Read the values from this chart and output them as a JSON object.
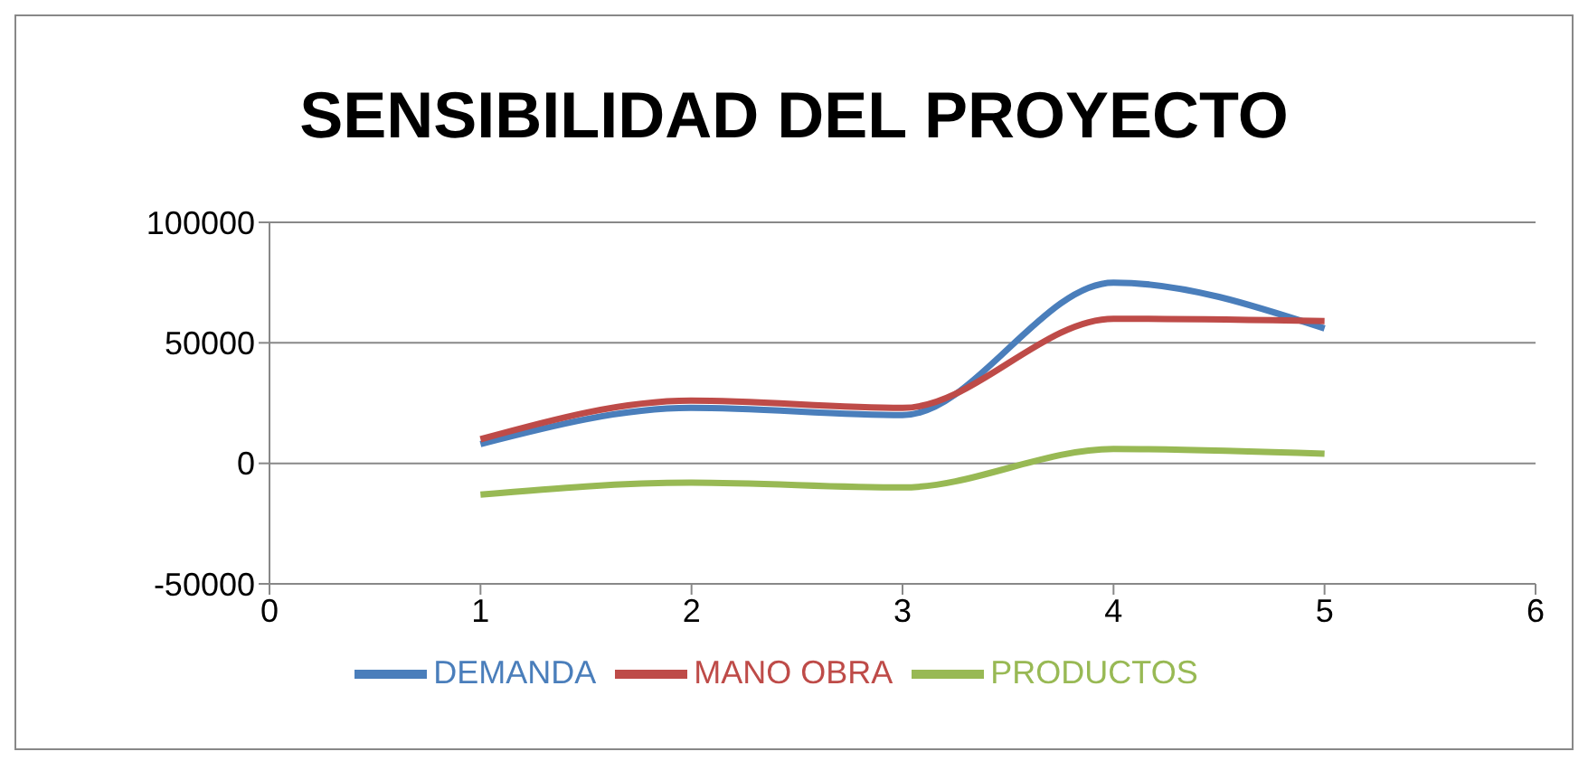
{
  "chart_data": {
    "type": "line",
    "title": "SENSIBILIDAD DEL PROYECTO",
    "x": [
      1,
      2,
      3,
      4,
      5
    ],
    "series": [
      {
        "name": "DEMANDA",
        "color": "#4a7ebb",
        "values": [
          8000,
          23000,
          20000,
          75000,
          56000
        ]
      },
      {
        "name": "MANO OBRA",
        "color": "#be4b48",
        "values": [
          10000,
          26000,
          23000,
          60000,
          59000
        ]
      },
      {
        "name": "PRODUCTOS",
        "color": "#98b954",
        "values": [
          -13000,
          -8000,
          -10000,
          6000,
          4000
        ]
      }
    ],
    "xlim": [
      0,
      6
    ],
    "xticks": [
      0,
      1,
      2,
      3,
      4,
      5,
      6
    ],
    "ylim": [
      -50000,
      100000
    ],
    "yticks": [
      -50000,
      0,
      50000,
      100000
    ],
    "grid": "y",
    "legend": "bottom",
    "marker": "none",
    "line_style": "solid"
  }
}
